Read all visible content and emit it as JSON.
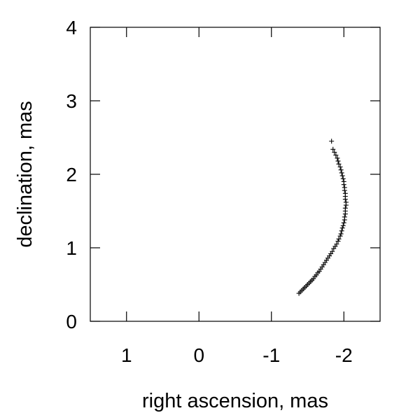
{
  "chart_data": {
    "type": "scatter",
    "title": "",
    "xlabel": "right ascension, mas",
    "ylabel": "declination, mas",
    "xlim": [
      1.5,
      -2.5
    ],
    "ylim": [
      0,
      4
    ],
    "x_reversed": true,
    "x_ticks": [
      1,
      0,
      -1,
      -2
    ],
    "x_tick_labels": [
      "1",
      "0",
      "-1",
      "-2"
    ],
    "y_ticks": [
      0,
      1,
      2,
      3,
      4
    ],
    "y_tick_labels": [
      "0",
      "1",
      "2",
      "3",
      "4"
    ],
    "grid": false,
    "legend": "none",
    "marker": "plus",
    "marker_color": "#000000",
    "series": [
      {
        "x": [
          -1.38,
          -1.4,
          -1.42,
          -1.44,
          -1.46,
          -1.48,
          -1.5,
          -1.52,
          -1.54,
          -1.56,
          -1.58,
          -1.6,
          -1.62,
          -1.64,
          -1.66,
          -1.68,
          -1.7,
          -1.72,
          -1.74,
          -1.76,
          -1.78,
          -1.8,
          -1.82,
          -1.84,
          -1.86,
          -1.88,
          -1.9,
          -1.92,
          -1.93,
          -1.95,
          -1.96,
          -1.97,
          -1.98,
          -1.99,
          -2.0,
          -2.01,
          -2.01,
          -2.02,
          -2.02,
          -2.02,
          -2.03,
          -2.03,
          -2.02,
          -2.02,
          -2.02,
          -2.01,
          -2.01,
          -2.0,
          -2.0,
          -1.99,
          -1.98,
          -1.97,
          -1.96,
          -1.95,
          -1.93,
          -1.92,
          -1.91,
          -1.89,
          -1.87,
          -1.85,
          -1.83
        ],
        "y": [
          0.38,
          0.4,
          0.42,
          0.44,
          0.46,
          0.48,
          0.5,
          0.52,
          0.54,
          0.56,
          0.58,
          0.61,
          0.63,
          0.66,
          0.68,
          0.71,
          0.74,
          0.77,
          0.8,
          0.83,
          0.86,
          0.89,
          0.92,
          0.95,
          0.99,
          1.02,
          1.05,
          1.09,
          1.12,
          1.16,
          1.19,
          1.23,
          1.27,
          1.3,
          1.34,
          1.38,
          1.42,
          1.46,
          1.5,
          1.54,
          1.58,
          1.62,
          1.66,
          1.7,
          1.74,
          1.78,
          1.82,
          1.86,
          1.9,
          1.94,
          1.98,
          2.02,
          2.06,
          2.1,
          2.14,
          2.18,
          2.22,
          2.26,
          2.3,
          2.34,
          2.45
        ]
      }
    ]
  }
}
